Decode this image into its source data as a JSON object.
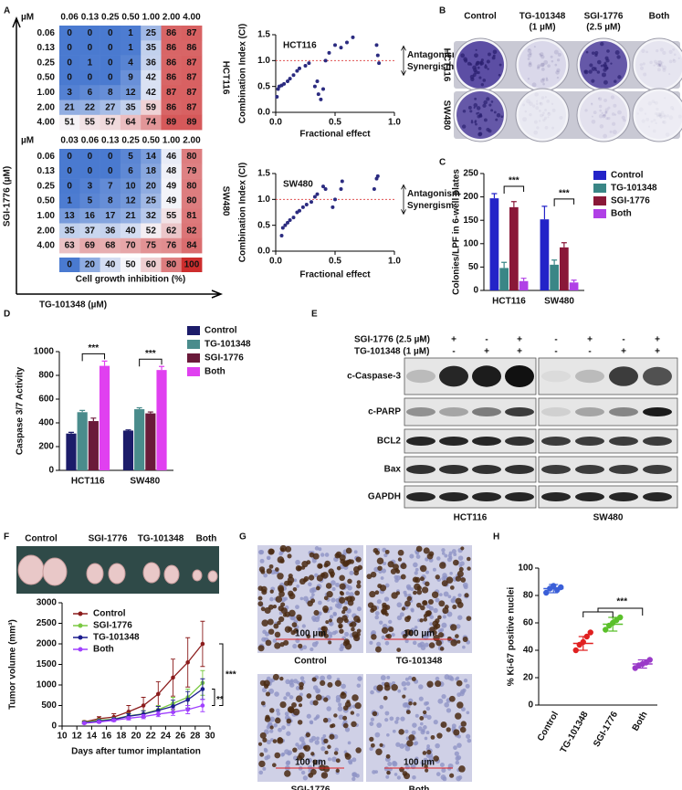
{
  "panel_labels": [
    "A",
    "B",
    "C",
    "D",
    "E",
    "F",
    "G",
    "H"
  ],
  "panel_a": {
    "y_label": "SGI-1776 (µM)",
    "x_label": "TG-101348 (µM)",
    "colorbar_label": "Cell growth inhibition (%)",
    "colorbar": [
      0,
      20,
      40,
      50,
      60,
      80,
      100
    ]
  },
  "panel_b": {
    "columns": [
      [
        "Control"
      ],
      [
        "TG-101348",
        "(1 µM)"
      ],
      [
        "SGI-1776",
        "(2.5 µM)"
      ],
      [
        "Both"
      ]
    ],
    "rows": [
      "HCT116",
      "SW480"
    ]
  },
  "panel_e": {
    "treatments": [
      {
        "label": "SGI-1776 (2.5 µM)",
        "signs": [
          "-",
          "+",
          "-",
          "+",
          "-",
          "+",
          "-",
          "+"
        ]
      },
      {
        "label": "TG-101348 (1 µM)",
        "signs": [
          "-",
          "-",
          "+",
          "+",
          "-",
          "-",
          "+",
          "+"
        ]
      }
    ],
    "proteins": [
      "c-Caspase-3",
      "c-PARP",
      "BCL2",
      "Bax",
      "GAPDH"
    ],
    "cell_lines": [
      "HCT116",
      "SW480"
    ]
  },
  "panel_f": {
    "photo_labels": [
      "Control",
      "SGI-1776",
      "TG-101348",
      "Both"
    ]
  },
  "panel_g": {
    "labels": [
      "Control",
      "TG-101348",
      "SGI-1776",
      "Both"
    ],
    "scale_bar": "100 µm"
  },
  "chart_data": [
    {
      "type": "heatmap",
      "label": "HCT116",
      "unit": "µM",
      "columns": [
        "0.06",
        "0.13",
        "0.25",
        "0.50",
        "1.00",
        "2.00",
        "4.00"
      ],
      "rows": [
        "0.06",
        "0.13",
        "0.25",
        "0.50",
        "1.00",
        "2.00",
        "4.00"
      ],
      "values": [
        [
          0,
          0,
          0,
          1,
          25,
          86,
          87
        ],
        [
          0,
          0,
          0,
          1,
          35,
          86,
          86
        ],
        [
          0,
          1,
          0,
          4,
          36,
          86,
          87
        ],
        [
          0,
          0,
          0,
          9,
          42,
          86,
          87
        ],
        [
          3,
          6,
          8,
          12,
          42,
          87,
          87
        ],
        [
          21,
          22,
          27,
          35,
          59,
          86,
          87
        ],
        [
          51,
          55,
          57,
          64,
          74,
          89,
          89
        ]
      ]
    },
    {
      "type": "heatmap",
      "label": "SW480",
      "unit": "µM",
      "columns": [
        "0.03",
        "0.06",
        "0.13",
        "0.25",
        "0.50",
        "1.00",
        "2.00"
      ],
      "rows": [
        "0.06",
        "0.13",
        "0.25",
        "0.50",
        "1.00",
        "2.00",
        "4.00"
      ],
      "values": [
        [
          0,
          0,
          0,
          5,
          14,
          46,
          80
        ],
        [
          0,
          0,
          0,
          6,
          18,
          48,
          79
        ],
        [
          0,
          3,
          7,
          10,
          20,
          49,
          80
        ],
        [
          1,
          5,
          8,
          12,
          25,
          49,
          80
        ],
        [
          13,
          16,
          17,
          21,
          32,
          55,
          81
        ],
        [
          35,
          37,
          36,
          40,
          52,
          62,
          82
        ],
        [
          63,
          69,
          68,
          70,
          75,
          76,
          84
        ]
      ]
    },
    {
      "type": "scatter",
      "title": "HCT116",
      "color": "#2b2b80",
      "x": [
        0.01,
        0.02,
        0.03,
        0.05,
        0.07,
        0.1,
        0.12,
        0.15,
        0.18,
        0.2,
        0.25,
        0.28,
        0.33,
        0.35,
        0.36,
        0.38,
        0.4,
        0.42,
        0.45,
        0.5,
        0.55,
        0.6,
        0.65,
        0.85,
        0.86,
        0.87
      ],
      "values": [
        0.3,
        0.45,
        0.5,
        0.52,
        0.55,
        0.6,
        0.65,
        0.72,
        0.8,
        0.85,
        0.9,
        0.95,
        0.5,
        0.6,
        0.35,
        0.25,
        0.45,
        1.0,
        1.15,
        1.3,
        1.25,
        1.35,
        1.45,
        1.3,
        1.1,
        0.95
      ],
      "xlim": [
        0,
        1
      ],
      "xticks": [
        {
          "value": 0,
          "label": "0.0"
        },
        0.5,
        {
          "value": 1,
          "label": "1.0"
        }
      ],
      "ylim": [
        0,
        1.5
      ],
      "yticks": [
        {
          "value": 0,
          "label": "0.0"
        },
        0.5,
        {
          "value": 1,
          "label": "1.0"
        },
        1.5
      ],
      "xlabel": "Fractional effect",
      "ylabel": "Combination Index (CI)",
      "reference_line": 1,
      "annotations": [
        "Antagonism",
        "Synergism"
      ]
    },
    {
      "type": "scatter",
      "title": "SW480",
      "color": "#2b2b80",
      "x": [
        0.05,
        0.06,
        0.08,
        0.1,
        0.12,
        0.15,
        0.18,
        0.2,
        0.23,
        0.26,
        0.3,
        0.33,
        0.35,
        0.4,
        0.42,
        0.48,
        0.5,
        0.55,
        0.56,
        0.83,
        0.85,
        0.86
      ],
      "values": [
        0.3,
        0.45,
        0.5,
        0.55,
        0.6,
        0.65,
        0.75,
        0.78,
        0.85,
        0.9,
        0.95,
        1.05,
        1.1,
        1.25,
        1.2,
        0.85,
        1.0,
        1.2,
        1.35,
        1.2,
        1.4,
        1.45
      ],
      "xlim": [
        0,
        1
      ],
      "xticks": [
        {
          "value": 0,
          "label": "0.0"
        },
        0.5,
        {
          "value": 1,
          "label": "1.0"
        }
      ],
      "ylim": [
        0,
        1.5
      ],
      "yticks": [
        {
          "value": 0,
          "label": "0.0"
        },
        0.5,
        {
          "value": 1,
          "label": "1.0"
        },
        1.5
      ],
      "xlabel": "Fractional effect",
      "ylabel": "Combination Index (CI)",
      "reference_line": 1,
      "annotations": [
        "Antagonism",
        "Synergism"
      ]
    },
    {
      "type": "bar",
      "categories": [
        "HCT116",
        "SW480"
      ],
      "series": [
        {
          "name": "Control",
          "color": "#2323c8",
          "values": [
            197,
            152
          ],
          "errors": [
            10,
            28
          ]
        },
        {
          "name": "TG-101348",
          "color": "#3a8686",
          "values": [
            48,
            55
          ],
          "errors": [
            12,
            10
          ]
        },
        {
          "name": "SGI-1776",
          "color": "#8a1838",
          "values": [
            178,
            92
          ],
          "errors": [
            12,
            10
          ]
        },
        {
          "name": "Both",
          "color": "#b040e6",
          "values": [
            20,
            17
          ],
          "errors": [
            6,
            5
          ]
        }
      ],
      "ylim": [
        0,
        250
      ],
      "yticks": [
        0,
        50,
        100,
        150,
        200,
        250
      ],
      "ylabel": "Colonies/LPF in 6-well plates",
      "legend": "right",
      "significance_labels": [
        "***",
        "***"
      ]
    },
    {
      "type": "bar",
      "categories": [
        "HCT116",
        "SW480"
      ],
      "series": [
        {
          "name": "Control",
          "color": "#1c1c6a",
          "values": [
            310,
            335
          ],
          "errors": [
            10,
            6
          ]
        },
        {
          "name": "TG-101348",
          "color": "#4a8c8c",
          "values": [
            490,
            515
          ],
          "errors": [
            15,
            12
          ]
        },
        {
          "name": "SGI-1776",
          "color": "#6a1a3a",
          "values": [
            415,
            480
          ],
          "errors": [
            25,
            12
          ]
        },
        {
          "name": "Both",
          "color": "#e040f0",
          "values": [
            880,
            845
          ],
          "errors": [
            40,
            30
          ]
        }
      ],
      "ylim": [
        0,
        1000
      ],
      "yticks": [
        0,
        200,
        400,
        600,
        800,
        1000
      ],
      "ylabel": "Caspase 3/7 Activity",
      "legend": "upper right",
      "significance_labels": [
        "***",
        "***"
      ]
    },
    {
      "type": "line",
      "x": [
        13,
        15,
        17,
        19,
        21,
        23,
        25,
        27,
        29
      ],
      "series": [
        {
          "name": "Control",
          "color": "#8b1c1c",
          "values": [
            100,
            180,
            220,
            350,
            500,
            780,
            1180,
            1550,
            2000
          ],
          "errors": [
            30,
            50,
            80,
            150,
            200,
            300,
            450,
            600,
            550
          ]
        },
        {
          "name": "SGI-1776",
          "color": "#7ac943",
          "values": [
            90,
            140,
            170,
            250,
            300,
            400,
            550,
            700,
            1050
          ],
          "errors": [
            20,
            30,
            40,
            60,
            80,
            100,
            150,
            200,
            300
          ]
        },
        {
          "name": "TG-101348",
          "color": "#1c1c8e",
          "values": [
            80,
            120,
            160,
            240,
            290,
            380,
            480,
            640,
            900
          ],
          "errors": [
            20,
            30,
            40,
            60,
            80,
            100,
            150,
            200,
            250
          ]
        },
        {
          "name": "Both",
          "color": "#a040ff",
          "values": [
            70,
            100,
            140,
            190,
            230,
            290,
            340,
            400,
            500
          ],
          "errors": [
            20,
            25,
            30,
            40,
            50,
            60,
            80,
            100,
            150
          ]
        }
      ],
      "xlim": [
        10,
        30
      ],
      "xticks": [
        10,
        12,
        14,
        16,
        18,
        20,
        22,
        24,
        26,
        28,
        30
      ],
      "ylim": [
        0,
        3000
      ],
      "yticks": [
        0,
        500,
        1000,
        1500,
        2000,
        2500,
        3000
      ],
      "xlabel": "Days after tumor implantation",
      "ylabel": "Tumor volume (mm³)",
      "legend": "upper left",
      "significance_labels": [
        "***",
        "**"
      ]
    },
    {
      "type": "dot",
      "categories": [
        "Control",
        "TG-101348",
        "SGI-1776",
        "Both"
      ],
      "colors": [
        "#3a5fd8",
        "#e02020",
        "#5ac02a",
        "#9a3ac8"
      ],
      "points": [
        [
          82,
          85,
          87,
          84,
          86
        ],
        [
          40,
          44,
          46,
          50,
          53
        ],
        [
          55,
          58,
          60,
          62,
          64
        ],
        [
          27,
          29,
          30,
          31,
          33
        ]
      ],
      "means": [
        85,
        45,
        59,
        30
      ],
      "sds": [
        3,
        5,
        5,
        3
      ],
      "ylim": [
        0,
        100
      ],
      "yticks": [
        0,
        20,
        40,
        60,
        80,
        100
      ],
      "ylabel": "% Ki-67 positive nuclei",
      "significance_labels": [
        "***"
      ]
    }
  ]
}
